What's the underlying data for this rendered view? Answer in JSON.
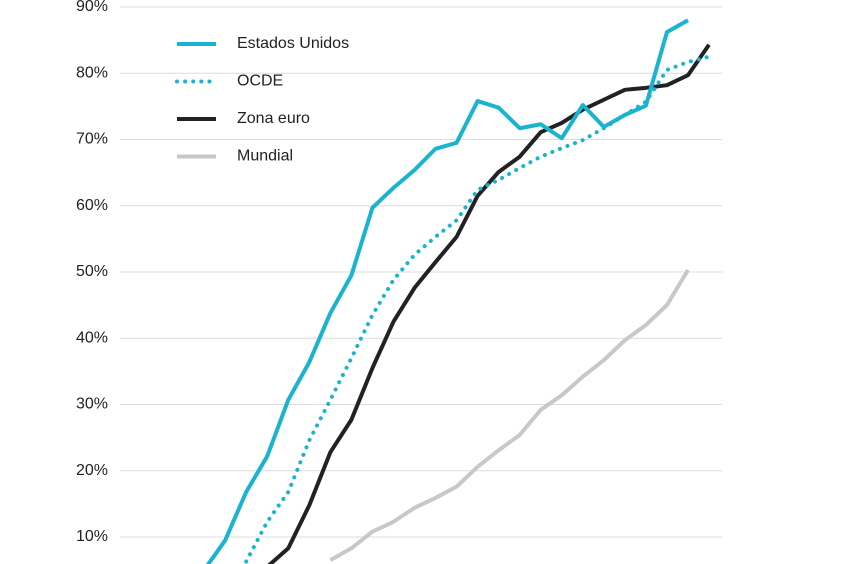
{
  "chart_data": {
    "type": "line",
    "categories": [
      null,
      null,
      null,
      null,
      null,
      null,
      null,
      null,
      null,
      null,
      null,
      null,
      null,
      null,
      null,
      null,
      null,
      null,
      null,
      null,
      null,
      null,
      null,
      null,
      null,
      null,
      null,
      null,
      null
    ],
    "series": [
      {
        "name": "Estados Unidos",
        "color": "#1ab3d0",
        "style": "solid",
        "values": [
          null,
          null,
          null,
          null,
          5,
          9.5,
          16.8,
          22.2,
          30.7,
          36.4,
          43.8,
          49.5,
          59.7,
          62.7,
          65.4,
          68.6,
          69.5,
          75.8,
          74.8,
          71.7,
          72.3,
          70.2,
          75.2,
          71.9,
          73.7,
          75.1,
          86.2,
          88.0,
          null
        ]
      },
      {
        "name": "OCDE",
        "color": "#1ab3d0",
        "style": "dotted",
        "values": [
          null,
          null,
          null,
          null,
          null,
          null,
          6.3,
          12.3,
          16.8,
          24.6,
          30.7,
          37.0,
          43.5,
          48.8,
          52.6,
          55.3,
          57.8,
          62.4,
          63.9,
          65.7,
          67.4,
          68.7,
          69.9,
          71.7,
          73.7,
          75.7,
          80.5,
          81.7,
          82.5
        ]
      },
      {
        "name": "Zona euro",
        "color": "#222222",
        "style": "solid",
        "values": [
          null,
          null,
          null,
          null,
          null,
          null,
          null,
          5.5,
          8.3,
          14.8,
          22.8,
          27.7,
          35.5,
          42.5,
          47.6,
          51.5,
          55.3,
          61.5,
          65.1,
          67.4,
          71.1,
          72.5,
          74.5,
          76.0,
          77.5,
          77.8,
          78.2,
          79.7,
          84.3
        ]
      },
      {
        "name": "Mundial",
        "color": "#c8c8c8",
        "style": "solid",
        "values": [
          null,
          null,
          null,
          null,
          null,
          null,
          null,
          null,
          null,
          null,
          6.5,
          8.3,
          10.8,
          12.3,
          14.4,
          15.9,
          17.6,
          20.6,
          23.1,
          25.4,
          29.2,
          31.4,
          34.2,
          36.7,
          39.7,
          42.0,
          45.0,
          50.3,
          null
        ]
      }
    ],
    "ylim": [
      0,
      90
    ],
    "yticks": [
      {
        "value": 10,
        "label": "10%"
      },
      {
        "value": 20,
        "label": "20%"
      },
      {
        "value": 30,
        "label": "30%"
      },
      {
        "value": 40,
        "label": "40%"
      },
      {
        "value": 50,
        "label": "50%"
      },
      {
        "value": 60,
        "label": "60%"
      },
      {
        "value": 70,
        "label": "70%"
      },
      {
        "value": 80,
        "label": "80%"
      },
      {
        "value": 90,
        "label": "90%"
      }
    ],
    "grid": true,
    "legend": "upper-left"
  }
}
